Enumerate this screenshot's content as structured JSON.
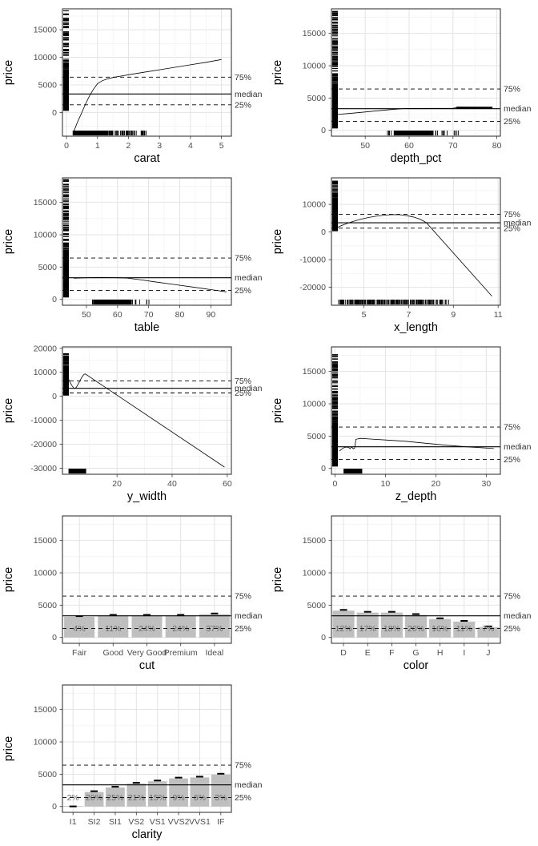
{
  "figure_title": "",
  "ylabel": "price",
  "theme": {
    "background": "#ffffff",
    "grid_major": "#e3e3e3",
    "grid_minor": "#f1f1f1",
    "panel_border": "#262626",
    "tick_color": "#333333",
    "tick_label_color": "#4d4d4d",
    "axis_title_color": "#000000",
    "line_color": "#000000",
    "bar_fill": "#bfbfbf",
    "rug_color": "#000000",
    "pct_label_color": "#6a6a6a",
    "quantile_label_color": "#333333"
  },
  "chart_data": {
    "type": "partial-dependence-grid",
    "ylabel": "price",
    "quantile_lines": [
      {
        "label": "75%",
        "value": 6400,
        "dashed": true
      },
      {
        "label": "median",
        "value": 3350,
        "dashed": false
      },
      {
        "label": "25%",
        "value": 1400,
        "dashed": true
      }
    ],
    "rug_left_profile": {
      "solid": [
        300,
        6900
      ],
      "sparse_top": 18600,
      "sparse_n": 115
    },
    "plots": [
      {
        "id": "carat",
        "kind": "line",
        "xlabel": "carat",
        "x_domain": [
          -0.13,
          5.32
        ],
        "x_ticks": [
          0,
          1,
          2,
          3,
          4,
          5
        ],
        "y_domain": [
          -4300,
          18800
        ],
        "y_ticks": [
          0,
          5000,
          10000,
          15000
        ],
        "line": [
          [
            0.24,
            -3400
          ],
          [
            0.35,
            -1800
          ],
          [
            0.48,
            -200
          ],
          [
            0.62,
            1600
          ],
          [
            0.75,
            3100
          ],
          [
            0.88,
            4300
          ],
          [
            1.0,
            5200
          ],
          [
            1.15,
            5750
          ],
          [
            1.3,
            6050
          ],
          [
            1.5,
            6350
          ],
          [
            1.75,
            6600
          ],
          [
            2.0,
            6850
          ],
          [
            2.5,
            7300
          ],
          [
            3.0,
            7750
          ],
          [
            3.5,
            8200
          ],
          [
            4.0,
            8650
          ],
          [
            4.5,
            9100
          ],
          [
            5.0,
            9600
          ]
        ],
        "rug_left": true,
        "rug_bottom": {
          "solid": [
            0.2,
            1.35
          ],
          "marks": [
            [
              1.35,
              2.1,
              40
            ],
            [
              2.1,
              2.58,
              16
            ]
          ]
        }
      },
      {
        "id": "depth_pct",
        "kind": "line",
        "xlabel": "depth_pct",
        "x_domain": [
          42.3,
          80.8
        ],
        "x_ticks": [
          50,
          60,
          70,
          80
        ],
        "y_domain": [
          -900,
          18800
        ],
        "y_ticks": [
          0,
          5000,
          10000,
          15000
        ],
        "line": [
          [
            43.3,
            2450
          ],
          [
            46,
            2600
          ],
          [
            49,
            2780
          ],
          [
            52,
            2980
          ],
          [
            55,
            3160
          ],
          [
            57.5,
            3300
          ],
          [
            58.5,
            3360
          ],
          [
            59.5,
            3390
          ],
          [
            70,
            3420
          ],
          [
            70.8,
            3520
          ],
          [
            79,
            3510
          ]
        ],
        "thick_segment": [
          [
            70.8,
            3520
          ],
          [
            79,
            3510
          ]
        ],
        "rug_left": true,
        "rug_bottom": {
          "solid": [
            56.5,
            65.2
          ],
          "marks": [
            [
              54.8,
              68.6,
              40
            ],
            [
              70,
              71.6,
              4
            ]
          ]
        }
      },
      {
        "id": "table",
        "kind": "line",
        "xlabel": "table",
        "x_domain": [
          42.3,
          96.6
        ],
        "x_ticks": [
          50,
          60,
          70,
          80,
          90
        ],
        "y_domain": [
          -900,
          18800
        ],
        "y_ticks": [
          0,
          5000,
          10000,
          15000
        ],
        "line": [
          [
            46,
            3280
          ],
          [
            49,
            3330
          ],
          [
            52,
            3390
          ],
          [
            55,
            3400
          ],
          [
            58,
            3380
          ],
          [
            61,
            3340
          ],
          [
            63,
            3300
          ],
          [
            67,
            3060
          ],
          [
            72,
            2720
          ],
          [
            78,
            2320
          ],
          [
            84,
            1920
          ],
          [
            90,
            1520
          ],
          [
            95,
            1170
          ]
        ],
        "rug_left": true,
        "rug_bottom": {
          "solid": [
            52.3,
            64.6
          ],
          "marks": [
            [
              51.3,
              67.2,
              46
            ],
            [
              68.5,
              70,
              3
            ]
          ]
        }
      },
      {
        "id": "x_length",
        "kind": "line",
        "xlabel": "x_length",
        "x_domain": [
          3.55,
          11.1
        ],
        "x_ticks": [
          5,
          7,
          9,
          11
        ],
        "y_domain": [
          -26500,
          19600
        ],
        "y_ticks": [
          -20000,
          -10000,
          0,
          10000
        ],
        "line": [
          [
            3.72,
            1300
          ],
          [
            4.0,
            2350
          ],
          [
            4.4,
            3550
          ],
          [
            4.8,
            4500
          ],
          [
            5.2,
            5250
          ],
          [
            5.6,
            5800
          ],
          [
            6.0,
            6150
          ],
          [
            6.3,
            6300
          ],
          [
            6.6,
            6250
          ],
          [
            6.9,
            5950
          ],
          [
            7.2,
            5450
          ],
          [
            7.45,
            4800
          ],
          [
            7.65,
            4050
          ],
          [
            7.8,
            3300
          ],
          [
            10.72,
            -23200
          ]
        ],
        "rug_left": true,
        "rug_bottom": {
          "marks": [
            [
              3.85,
              8.12,
              210
            ],
            [
              8.12,
              8.85,
              16
            ]
          ]
        }
      },
      {
        "id": "y_width",
        "kind": "line",
        "xlabel": "y_width",
        "x_domain": [
          0.2,
          61.5
        ],
        "x_ticks": [
          20,
          40,
          60
        ],
        "y_domain": [
          -32500,
          20600
        ],
        "y_ticks": [
          -30000,
          -20000,
          -10000,
          0,
          10000,
          20000
        ],
        "line": [
          [
            1.2,
            10500
          ],
          [
            2.0,
            8200
          ],
          [
            2.8,
            6200
          ],
          [
            3.6,
            4500
          ],
          [
            4.3,
            3500
          ],
          [
            4.8,
            3250
          ],
          [
            5.3,
            3900
          ],
          [
            6.0,
            5300
          ],
          [
            6.8,
            7000
          ],
          [
            7.5,
            8400
          ],
          [
            8.1,
            9200
          ],
          [
            8.5,
            9300
          ],
          [
            59,
            -29500
          ]
        ],
        "rug_left": true,
        "rug_bottom": {
          "solid": [
            2.4,
            8.8
          ]
        }
      },
      {
        "id": "z_depth",
        "kind": "line",
        "xlabel": "z_depth",
        "x_domain": [
          -0.7,
          32.8
        ],
        "x_ticks": [
          0,
          10,
          20,
          30
        ],
        "y_domain": [
          -900,
          18800
        ],
        "y_ticks": [
          0,
          5000,
          10000,
          15000
        ],
        "line": [
          [
            0.9,
            2700
          ],
          [
            1.6,
            3150
          ],
          [
            2.2,
            3300
          ],
          [
            2.7,
            3250
          ],
          [
            3.0,
            3050
          ],
          [
            3.3,
            3350
          ],
          [
            3.6,
            3050
          ],
          [
            3.9,
            3150
          ],
          [
            4.15,
            4500
          ],
          [
            5.0,
            4650
          ],
          [
            7,
            4550
          ],
          [
            10,
            4400
          ],
          [
            14,
            4200
          ],
          [
            18,
            3900
          ],
          [
            22,
            3600
          ],
          [
            26,
            3350
          ],
          [
            29,
            3200
          ],
          [
            31.5,
            3080
          ]
        ],
        "rug_left": true,
        "rug_bottom": {
          "solid": [
            1.7,
            5.4
          ]
        }
      },
      {
        "id": "cut",
        "kind": "bar",
        "xlabel": "cut",
        "categories": [
          "Fair",
          "Good",
          "Very Good",
          "Premium",
          "Ideal"
        ],
        "values": [
          3200,
          3400,
          3400,
          3400,
          3600
        ],
        "markers": [
          3300,
          3500,
          3500,
          3500,
          3710
        ],
        "pct_labels": [
          "4%",
          "11%",
          "24%",
          "24%",
          "37%"
        ],
        "pct_label_y": 1400,
        "y_domain": [
          -900,
          18800
        ],
        "y_ticks": [
          0,
          5000,
          10000,
          15000
        ]
      },
      {
        "id": "color",
        "kind": "bar",
        "xlabel": "color",
        "categories": [
          "D",
          "E",
          "F",
          "G",
          "H",
          "I",
          "J"
        ],
        "values": [
          4150,
          3850,
          3850,
          3500,
          2850,
          2450,
          1600
        ],
        "markers": [
          4270,
          3970,
          3970,
          3620,
          2970,
          2570,
          1720
        ],
        "pct_labels": [
          "12%",
          "17%",
          "18%",
          "20%",
          "16%",
          "11%",
          "7%"
        ],
        "pct_label_y": 1400,
        "y_domain": [
          -900,
          18800
        ],
        "y_ticks": [
          0,
          5000,
          10000,
          15000
        ]
      },
      {
        "id": "clarity",
        "kind": "bar",
        "xlabel": "clarity",
        "categories": [
          "I1",
          "SI2",
          "SI1",
          "VS2",
          "VS1",
          "VVS2",
          "VVS1",
          "IF"
        ],
        "values": [
          80,
          2250,
          2950,
          3550,
          3900,
          4350,
          4500,
          4950
        ],
        "markers": [
          20,
          2370,
          3070,
          3670,
          4020,
          4470,
          4620,
          5070
        ],
        "pct_labels": [
          "2%",
          "20%",
          "25%",
          "21%",
          "15%",
          "9%",
          "6%",
          "3%"
        ],
        "pct_label_y": 1400,
        "y_domain": [
          -900,
          18800
        ],
        "y_ticks": [
          0,
          5000,
          10000,
          15000
        ]
      }
    ]
  }
}
